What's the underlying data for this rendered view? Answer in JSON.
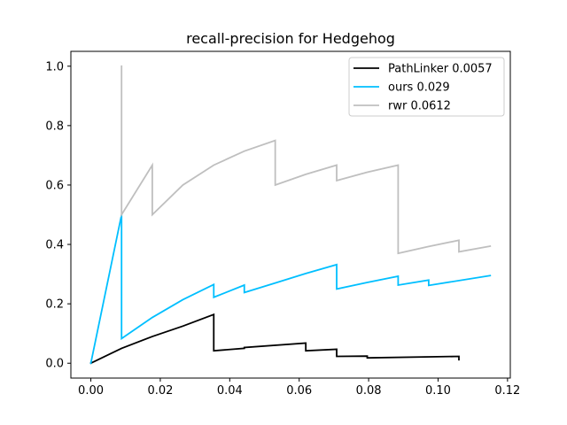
{
  "chart_data": {
    "type": "line",
    "title": "recall-precision for Hedgehog",
    "xlabel": "",
    "ylabel": "",
    "xlim": [
      -0.00575,
      0.1208
    ],
    "ylim": [
      -0.05,
      1.05
    ],
    "x_ticks": [
      0.0,
      0.02,
      0.04,
      0.06,
      0.08,
      0.1,
      0.12
    ],
    "x_tick_labels": [
      "0.00",
      "0.02",
      "0.04",
      "0.06",
      "0.08",
      "0.10",
      "0.12"
    ],
    "y_ticks": [
      0.0,
      0.2,
      0.4,
      0.6,
      0.8,
      1.0
    ],
    "y_tick_labels": [
      "0.0",
      "0.2",
      "0.4",
      "0.6",
      "0.8",
      "1.0"
    ],
    "grid": false,
    "legend_position": "top-right",
    "series": [
      {
        "name": "PathLinker 0.0057",
        "color": "#000000",
        "points": [
          [
            0.0,
            0.0
          ],
          [
            0.00885,
            0.05
          ],
          [
            0.0177,
            0.09
          ],
          [
            0.0265,
            0.125
          ],
          [
            0.0354,
            0.164
          ],
          [
            0.0354,
            0.042
          ],
          [
            0.0442,
            0.05
          ],
          [
            0.0442,
            0.053
          ],
          [
            0.0619,
            0.068
          ],
          [
            0.0619,
            0.042
          ],
          [
            0.0708,
            0.047
          ],
          [
            0.0708,
            0.023
          ],
          [
            0.0796,
            0.024
          ],
          [
            0.0796,
            0.018
          ],
          [
            0.106,
            0.023
          ],
          [
            0.106,
            0.012
          ]
        ]
      },
      {
        "name": "ours 0.029",
        "color": "#00bfff",
        "points": [
          [
            0.0,
            0.0
          ],
          [
            0.00885,
            0.5
          ],
          [
            0.00885,
            0.083
          ],
          [
            0.0177,
            0.154
          ],
          [
            0.0265,
            0.214
          ],
          [
            0.0354,
            0.265
          ],
          [
            0.0354,
            0.222
          ],
          [
            0.0442,
            0.263
          ],
          [
            0.0442,
            0.238
          ],
          [
            0.0531,
            0.27
          ],
          [
            0.0619,
            0.302
          ],
          [
            0.0708,
            0.332
          ],
          [
            0.0708,
            0.25
          ],
          [
            0.0796,
            0.272
          ],
          [
            0.0885,
            0.293
          ],
          [
            0.0885,
            0.263
          ],
          [
            0.0973,
            0.28
          ],
          [
            0.0973,
            0.262
          ],
          [
            0.115,
            0.295
          ]
        ]
      },
      {
        "name": "rwr 0.0612",
        "color": "#bfbfbf",
        "points": [
          [
            0.00885,
            1.0
          ],
          [
            0.00885,
            0.5
          ],
          [
            0.0177,
            0.667
          ],
          [
            0.0177,
            0.5
          ],
          [
            0.0265,
            0.6
          ],
          [
            0.0354,
            0.667
          ],
          [
            0.0442,
            0.714
          ],
          [
            0.0531,
            0.75
          ],
          [
            0.0531,
            0.6
          ],
          [
            0.0619,
            0.636
          ],
          [
            0.0708,
            0.667
          ],
          [
            0.0708,
            0.615
          ],
          [
            0.0796,
            0.643
          ],
          [
            0.0885,
            0.667
          ],
          [
            0.0885,
            0.37
          ],
          [
            0.0973,
            0.393
          ],
          [
            0.106,
            0.414
          ],
          [
            0.106,
            0.375
          ],
          [
            0.115,
            0.394
          ]
        ]
      }
    ]
  }
}
